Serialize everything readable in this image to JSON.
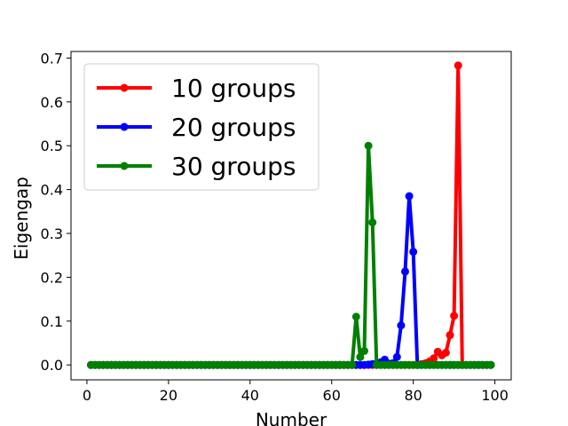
{
  "chart_data": {
    "type": "line",
    "title": "",
    "xlabel": "Number",
    "ylabel": "Eigengap",
    "xlim": [
      -3.9,
      104
    ],
    "ylim": [
      -0.034,
      0.715
    ],
    "x_ticks": [
      0,
      20,
      40,
      60,
      80,
      100
    ],
    "y_ticks": [
      0.0,
      0.1,
      0.2,
      0.3,
      0.4,
      0.5,
      0.6,
      0.7
    ],
    "x_tick_labels": [
      "0",
      "20",
      "40",
      "60",
      "80",
      "100"
    ],
    "y_tick_labels": [
      "0.0",
      "0.1",
      "0.2",
      "0.3",
      "0.4",
      "0.5",
      "0.6",
      "0.7"
    ],
    "grid": false,
    "legend_position": "top-left",
    "x": [
      1,
      2,
      3,
      4,
      5,
      6,
      7,
      8,
      9,
      10,
      11,
      12,
      13,
      14,
      15,
      16,
      17,
      18,
      19,
      20,
      21,
      22,
      23,
      24,
      25,
      26,
      27,
      28,
      29,
      30,
      31,
      32,
      33,
      34,
      35,
      36,
      37,
      38,
      39,
      40,
      41,
      42,
      43,
      44,
      45,
      46,
      47,
      48,
      49,
      50,
      51,
      52,
      53,
      54,
      55,
      56,
      57,
      58,
      59,
      60,
      61,
      62,
      63,
      64,
      65,
      66,
      67,
      68,
      69,
      70,
      71,
      72,
      73,
      74,
      75,
      76,
      77,
      78,
      79,
      80,
      81,
      82,
      83,
      84,
      85,
      86,
      87,
      88,
      89,
      90,
      91,
      92,
      93,
      94,
      95,
      96,
      97,
      98,
      99
    ],
    "series": [
      {
        "name": "10 groups",
        "color": "#ff0000",
        "values": [
          0,
          0,
          0,
          0,
          0,
          0,
          0,
          0,
          0,
          0,
          0,
          0,
          0,
          0,
          0,
          0,
          0,
          0,
          0,
          0,
          0,
          0,
          0,
          0,
          0,
          0,
          0,
          0,
          0,
          0,
          0,
          0,
          0,
          0,
          0,
          0,
          0,
          0,
          0,
          0,
          0,
          0,
          0,
          0,
          0,
          0,
          0,
          0,
          0,
          0,
          0,
          0,
          0,
          0,
          0,
          0,
          0,
          0,
          0,
          0,
          0,
          0,
          0,
          0,
          0,
          0,
          0,
          0,
          0,
          0,
          0,
          0,
          0,
          0,
          0,
          0,
          0,
          0,
          0,
          0,
          0,
          0.002,
          0.004,
          0.008,
          0.015,
          0.03,
          0.022,
          0.028,
          0.068,
          0.112,
          0.683,
          0,
          0,
          0,
          0,
          0,
          0,
          0,
          0
        ]
      },
      {
        "name": "20 groups",
        "color": "#0000ff",
        "values": [
          0,
          0,
          0,
          0,
          0,
          0,
          0,
          0,
          0,
          0,
          0,
          0,
          0,
          0,
          0,
          0,
          0,
          0,
          0,
          0,
          0,
          0,
          0,
          0,
          0,
          0,
          0,
          0,
          0,
          0,
          0,
          0,
          0,
          0,
          0,
          0,
          0,
          0,
          0,
          0,
          0,
          0,
          0,
          0,
          0,
          0,
          0,
          0,
          0,
          0,
          0,
          0,
          0,
          0,
          0,
          0,
          0,
          0,
          0,
          0,
          0,
          0,
          0,
          0,
          0,
          0,
          0,
          0,
          0.001,
          0.002,
          0.003,
          0.006,
          0.012,
          0.003,
          0.004,
          0.018,
          0.09,
          0.213,
          0.385,
          0.258,
          0,
          0,
          0,
          0,
          0,
          0,
          0,
          0,
          0,
          0,
          0,
          0,
          0,
          0,
          0,
          0,
          0,
          0,
          0
        ]
      },
      {
        "name": "30 groups",
        "color": "#008000",
        "values": [
          0,
          0,
          0,
          0,
          0,
          0,
          0,
          0,
          0,
          0,
          0,
          0,
          0,
          0,
          0,
          0,
          0,
          0,
          0,
          0,
          0,
          0,
          0,
          0,
          0,
          0,
          0,
          0,
          0,
          0,
          0,
          0,
          0,
          0,
          0,
          0,
          0,
          0,
          0,
          0,
          0,
          0,
          0,
          0,
          0,
          0,
          0,
          0,
          0,
          0,
          0,
          0,
          0,
          0,
          0,
          0,
          0,
          0,
          0,
          0,
          0,
          0,
          0,
          0,
          0,
          0.11,
          0.018,
          0.032,
          0.5,
          0.325,
          0,
          0,
          0,
          0,
          0,
          0,
          0,
          0,
          0,
          0,
          0,
          0,
          0,
          0,
          0,
          0,
          0,
          0,
          0,
          0,
          0,
          0,
          0,
          0,
          0,
          0,
          0,
          0,
          0
        ]
      }
    ]
  }
}
